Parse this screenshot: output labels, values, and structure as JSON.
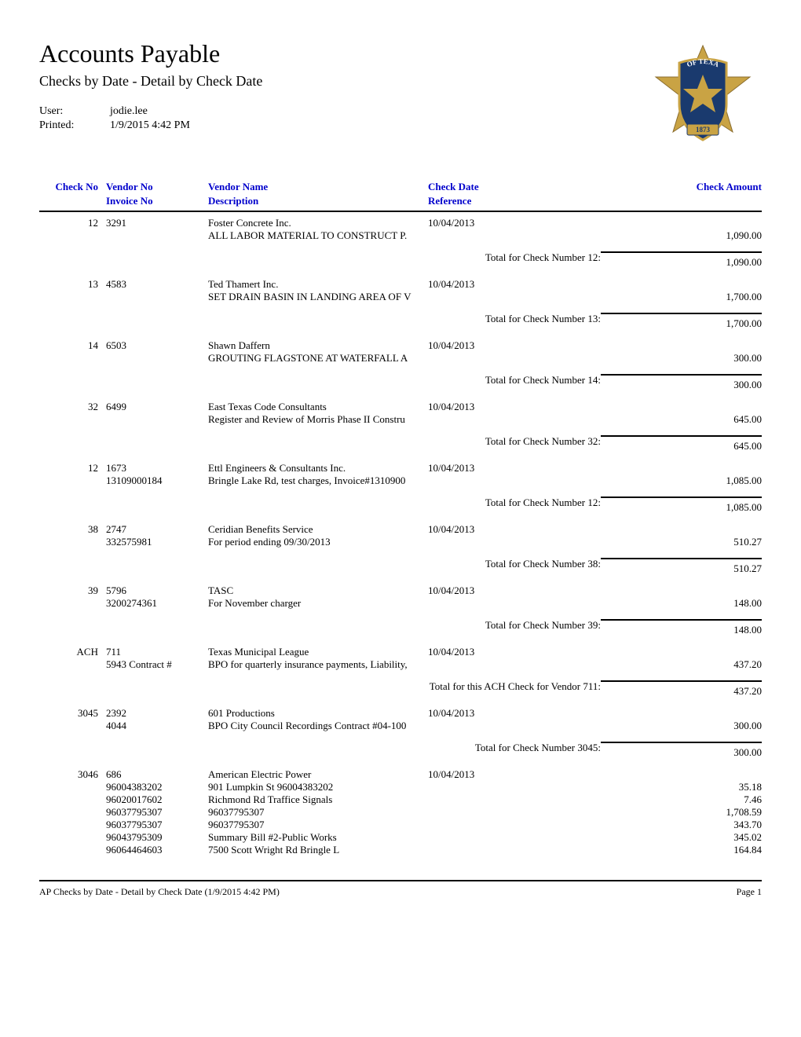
{
  "header": {
    "title": "Accounts Payable",
    "subtitle": "Checks by Date - Detail by Check Date",
    "user_label": "User:",
    "user_value": "jodie.lee",
    "printed_label": "Printed:",
    "printed_value": "1/9/2015  4:42 PM"
  },
  "column_headers": {
    "check_no": "Check No",
    "vendor_no": "Vendor No",
    "vendor_name": "Vendor Name",
    "check_date": "Check Date",
    "check_amount": "Check Amount",
    "invoice_no": "Invoice No",
    "description": "Description",
    "reference": "Reference"
  },
  "checks": [
    {
      "check_no": "12",
      "vendor_no": "3291",
      "vendor_name": "Foster Concrete Inc.",
      "check_date": "10/04/2013",
      "lines": [
        {
          "invoice_no": "",
          "description": "ALL LABOR MATERIAL TO CONSTRUCT P.",
          "amount": "1,090.00"
        }
      ],
      "total_label": "Total for Check Number 12:",
      "total_amount": "1,090.00"
    },
    {
      "check_no": "13",
      "vendor_no": "4583",
      "vendor_name": "Ted Thamert Inc.",
      "check_date": "10/04/2013",
      "lines": [
        {
          "invoice_no": "",
          "description": "SET DRAIN BASIN IN LANDING AREA OF V",
          "amount": "1,700.00"
        }
      ],
      "total_label": "Total for Check Number 13:",
      "total_amount": "1,700.00"
    },
    {
      "check_no": "14",
      "vendor_no": "6503",
      "vendor_name": "Shawn Daffern",
      "check_date": "10/04/2013",
      "lines": [
        {
          "invoice_no": "",
          "description": "GROUTING FLAGSTONE AT WATERFALL A",
          "amount": "300.00"
        }
      ],
      "total_label": "Total for Check Number 14:",
      "total_amount": "300.00"
    },
    {
      "check_no": "32",
      "vendor_no": "6499",
      "vendor_name": "East Texas Code Consultants",
      "check_date": "10/04/2013",
      "lines": [
        {
          "invoice_no": "",
          "description": "Register and Review of Morris Phase II Constru",
          "amount": "645.00"
        }
      ],
      "total_label": "Total for Check Number 32:",
      "total_amount": "645.00"
    },
    {
      "check_no": "12",
      "vendor_no": "1673",
      "vendor_name": "Ettl Engineers & Consultants Inc.",
      "check_date": "10/04/2013",
      "lines": [
        {
          "invoice_no": "13109000184",
          "description": "Bringle Lake Rd, test charges, Invoice#1310900",
          "amount": "1,085.00"
        }
      ],
      "total_label": "Total for Check Number 12:",
      "total_amount": "1,085.00"
    },
    {
      "check_no": "38",
      "vendor_no": "2747",
      "vendor_name": "Ceridian Benefits Service",
      "check_date": "10/04/2013",
      "lines": [
        {
          "invoice_no": "332575981",
          "description": "For period ending 09/30/2013",
          "amount": "510.27"
        }
      ],
      "total_label": "Total for Check Number 38:",
      "total_amount": "510.27"
    },
    {
      "check_no": "39",
      "vendor_no": "5796",
      "vendor_name": "TASC",
      "check_date": "10/04/2013",
      "lines": [
        {
          "invoice_no": "3200274361",
          "description": "For November charger",
          "amount": "148.00"
        }
      ],
      "total_label": "Total for Check Number 39:",
      "total_amount": "148.00"
    },
    {
      "check_no": "ACH",
      "vendor_no": "711",
      "vendor_name": "Texas Municipal League",
      "check_date": "10/04/2013",
      "lines": [
        {
          "invoice_no": "5943 Contract #",
          "description": "BPO for quarterly insurance payments, Liability,",
          "amount": "437.20"
        }
      ],
      "total_label": "Total for this ACH Check for Vendor 711:",
      "total_amount": "437.20"
    },
    {
      "check_no": "3045",
      "vendor_no": "2392",
      "vendor_name": "601 Productions",
      "check_date": "10/04/2013",
      "lines": [
        {
          "invoice_no": "4044",
          "description": "BPO City Council Recordings Contract #04-100",
          "amount": "300.00"
        }
      ],
      "total_label": "Total for Check Number 3045:",
      "total_amount": "300.00"
    },
    {
      "check_no": "3046",
      "vendor_no": "686",
      "vendor_name": "American Electric Power",
      "check_date": "10/04/2013",
      "lines": [
        {
          "invoice_no": "96004383202",
          "description": "901 Lumpkin St 96004383202",
          "amount": "35.18"
        },
        {
          "invoice_no": "96020017602",
          "description": "Richmond Rd Traffice Signals",
          "amount": "7.46"
        },
        {
          "invoice_no": "96037795307",
          "description": "96037795307",
          "amount": "1,708.59"
        },
        {
          "invoice_no": "96037795307",
          "description": "96037795307",
          "amount": "343.70"
        },
        {
          "invoice_no": "96043795309",
          "description": "Summary Bill #2-Public Works",
          "amount": "345.02"
        },
        {
          "invoice_no": "96064464603",
          "description": "7500 Scott Wright Rd Bringle L",
          "amount": "164.84"
        }
      ],
      "total_label": "",
      "total_amount": ""
    }
  ],
  "footer": {
    "left": "AP Checks by Date - Detail by Check Date (1/9/2015  4:42 PM)",
    "right": "Page 1"
  },
  "logo": {
    "badge_color": "#1a3a6e",
    "star_color": "#c9a344",
    "banner_color": "#1a3a6e",
    "year": "1873"
  }
}
